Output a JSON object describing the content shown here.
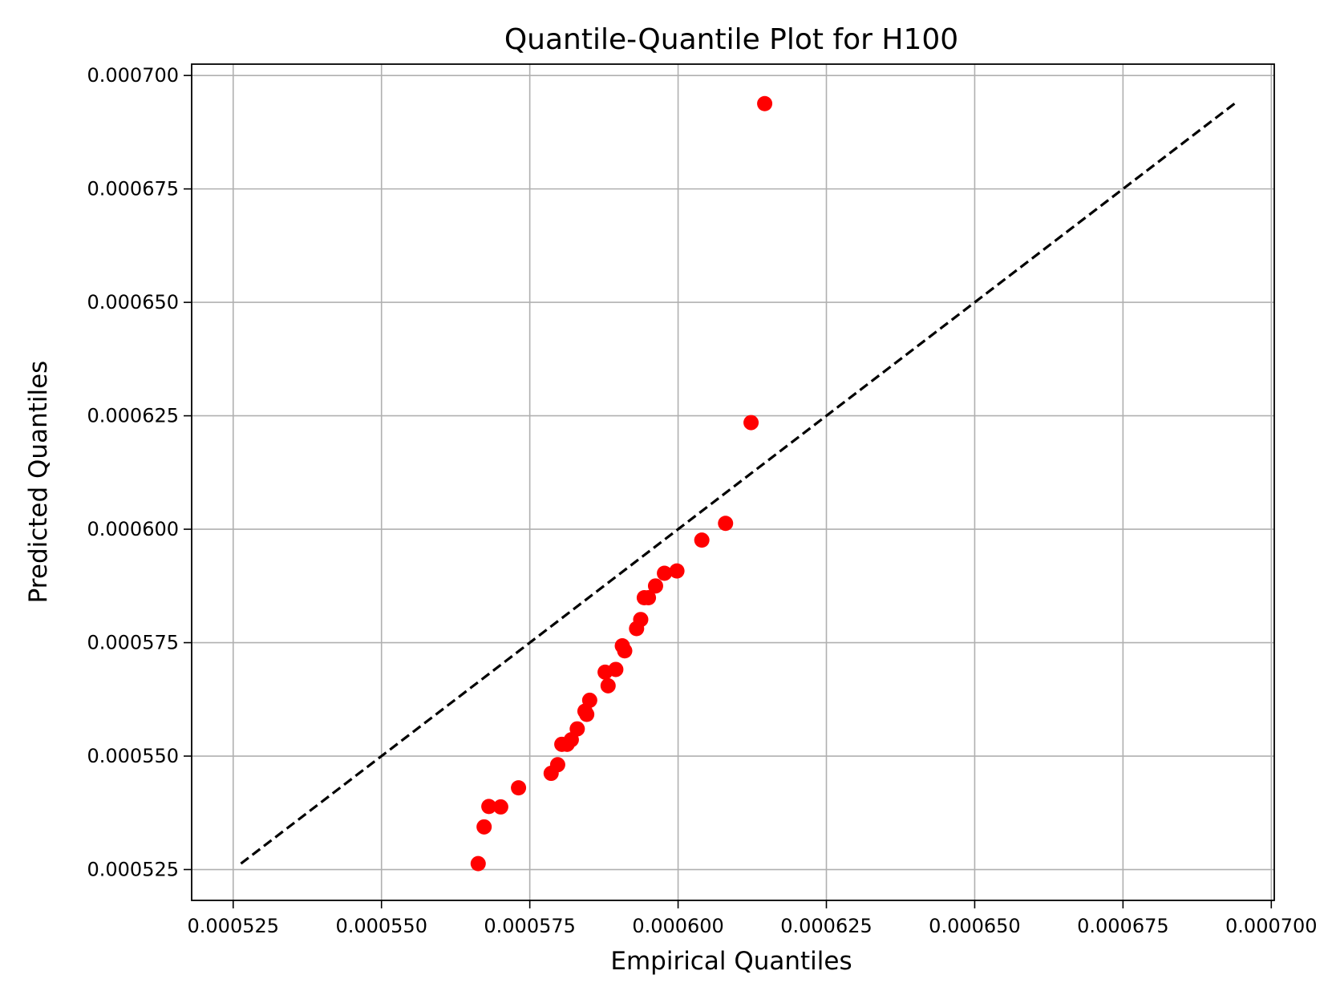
{
  "chart_data": {
    "type": "scatter",
    "title": "Quantile-Quantile Plot for H100",
    "xlabel": "Empirical Quantiles",
    "ylabel": "Predicted Quantiles",
    "xlim": [
      0.000518,
      0.0007005
    ],
    "ylim": [
      0.0005182,
      0.0007025
    ],
    "x_ticks": [
      0.000525,
      0.00055,
      0.000575,
      0.0006,
      0.000625,
      0.00065,
      0.000675,
      0.0007
    ],
    "x_tick_labels": [
      "0.000525",
      "0.000550",
      "0.000575",
      "0.000600",
      "0.000625",
      "0.000650",
      "0.000675",
      "0.000700"
    ],
    "y_ticks": [
      0.000525,
      0.00055,
      0.000575,
      0.0006,
      0.000625,
      0.00065,
      0.000675,
      0.0007
    ],
    "y_tick_labels": [
      "0.000525",
      "0.000550",
      "0.000575",
      "0.000600",
      "0.000625",
      "0.000650",
      "0.000675",
      "0.000700"
    ],
    "grid": true,
    "reference_line": {
      "x": [
        0.0005263,
        0.0006939
      ],
      "y": [
        0.0005263,
        0.0006939
      ],
      "color": "#000000",
      "style": "dashed"
    },
    "series": [
      {
        "color": "#ff0000",
        "x": [
          0.0005663,
          0.0005673,
          0.0005681,
          0.0005701,
          0.0005731,
          0.0005786,
          0.0005797,
          0.0005804,
          0.0005813,
          0.000582,
          0.000583,
          0.0005843,
          0.0005846,
          0.0005851,
          0.0005877,
          0.0005882,
          0.0005895,
          0.0005906,
          0.000591,
          0.000593,
          0.0005937,
          0.0005943,
          0.000595,
          0.0005962,
          0.0005977,
          0.0005998,
          0.000604,
          0.000608,
          0.0006123,
          0.0006146
        ],
        "y": [
          0.0005263,
          0.0005344,
          0.0005389,
          0.0005388,
          0.000543,
          0.0005462,
          0.0005481,
          0.0005526,
          0.0005526,
          0.0005536,
          0.000556,
          0.0005599,
          0.0005592,
          0.0005623,
          0.0005685,
          0.0005655,
          0.0005691,
          0.0005743,
          0.0005732,
          0.0005781,
          0.0005801,
          0.0005849,
          0.0005849,
          0.0005875,
          0.0005903,
          0.0005908,
          0.0005976,
          0.0006013,
          0.0006235,
          0.0006938
        ]
      }
    ]
  }
}
